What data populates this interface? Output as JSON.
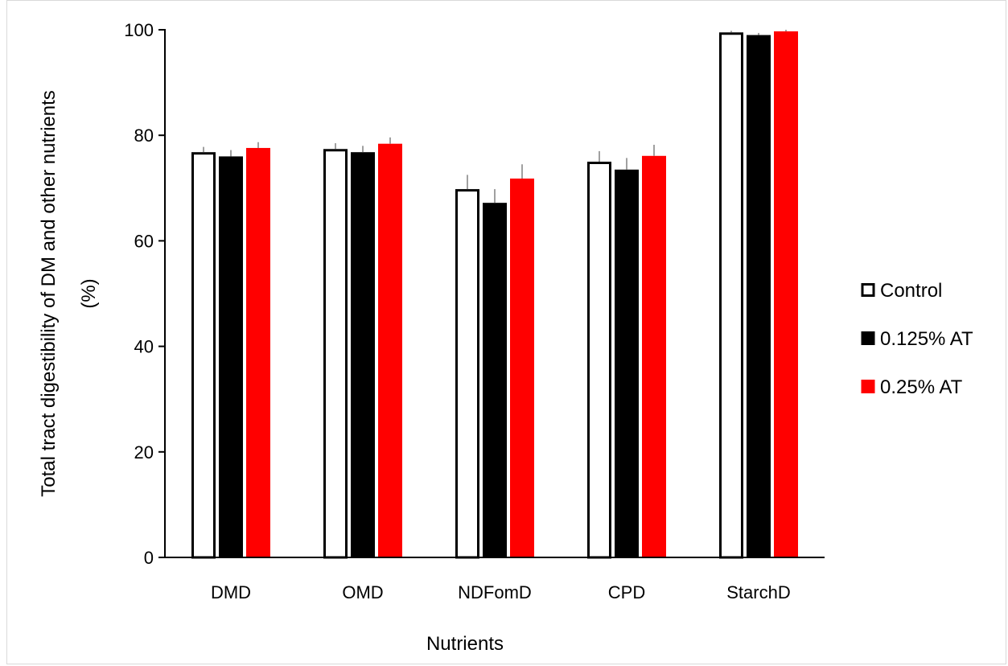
{
  "chart_data": {
    "type": "bar",
    "title": "",
    "xlabel": "Nutrients",
    "ylabel_line1": "Total tract digestibility of DM and other nutrients",
    "ylabel_line2": "(%)",
    "categories": [
      "DMD",
      "OMD",
      "NDFomD",
      "CPD",
      "StarchD"
    ],
    "ylim": [
      0,
      100
    ],
    "yticks": [
      "0",
      "20",
      "40",
      "60",
      "80",
      "100"
    ],
    "grid": false,
    "legend_position": "right",
    "series": [
      {
        "name": "Control",
        "values": [
          76.8,
          77.4,
          69.8,
          75.0,
          99.5
        ],
        "errors": [
          1.0,
          1.1,
          2.7,
          2.0,
          0.3
        ],
        "fill": "#ffffff",
        "stroke": "#000000"
      },
      {
        "name": "0.125% AT",
        "values": [
          76.0,
          76.8,
          67.2,
          73.5,
          99.0
        ],
        "errors": [
          1.2,
          1.2,
          2.6,
          2.2,
          0.4
        ],
        "fill": "#000000",
        "stroke": "#000000"
      },
      {
        "name": "0.25% AT",
        "values": [
          77.6,
          78.4,
          71.8,
          76.1,
          99.7
        ],
        "errors": [
          1.1,
          1.2,
          2.7,
          2.1,
          0.3
        ],
        "fill": "#ff0000",
        "stroke": "#ff0000"
      }
    ]
  }
}
